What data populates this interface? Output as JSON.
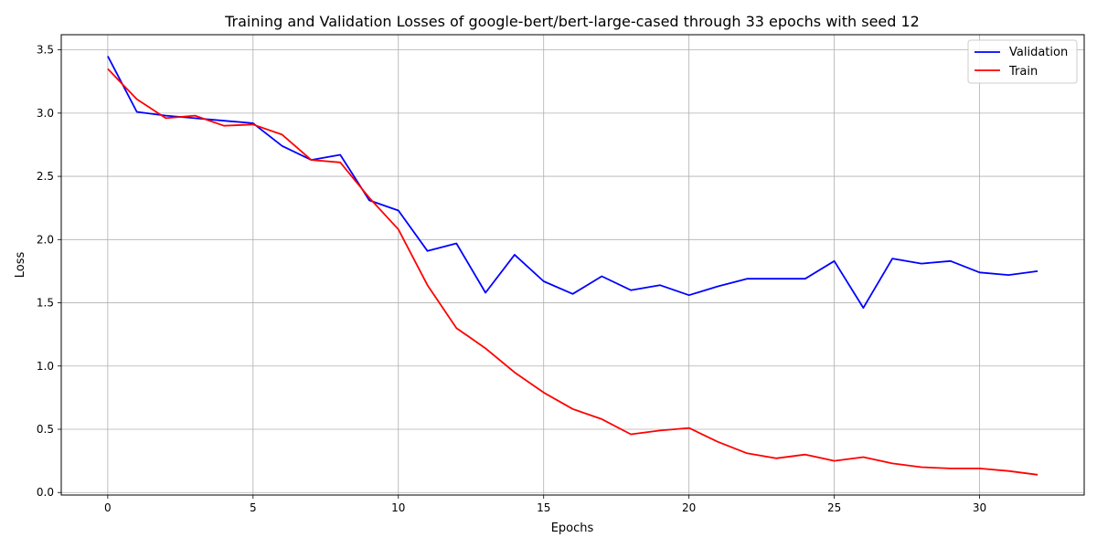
{
  "chart_data": {
    "type": "line",
    "title": "Training and Validation Losses of google-bert/bert-large-cased through 33 epochs with seed 12",
    "xlabel": "Epochs",
    "ylabel": "Loss",
    "xlim": [
      -1.6,
      33.6
    ],
    "ylim": [
      -0.02,
      3.62
    ],
    "xticks": [
      0,
      5,
      10,
      15,
      20,
      25,
      30
    ],
    "yticks": [
      0.0,
      0.5,
      1.0,
      1.5,
      2.0,
      2.5,
      3.0,
      3.5
    ],
    "ytick_labels": [
      "0.0",
      "0.5",
      "1.0",
      "1.5",
      "2.0",
      "2.5",
      "3.0",
      "3.5"
    ],
    "grid": true,
    "legend_position": "top-right",
    "x": [
      0,
      1,
      2,
      3,
      4,
      5,
      6,
      7,
      8,
      9,
      10,
      11,
      12,
      13,
      14,
      15,
      16,
      17,
      18,
      19,
      20,
      21,
      22,
      23,
      24,
      25,
      26,
      27,
      28,
      29,
      30,
      31,
      32
    ],
    "series": [
      {
        "name": "Validation",
        "color": "#0000ff",
        "values": [
          3.45,
          3.01,
          2.98,
          2.96,
          2.94,
          2.92,
          2.74,
          2.63,
          2.67,
          2.31,
          2.23,
          1.91,
          1.97,
          1.58,
          1.88,
          1.67,
          1.57,
          1.71,
          1.6,
          1.64,
          1.56,
          1.63,
          1.69,
          1.69,
          1.69,
          1.83,
          1.46,
          1.85,
          1.81,
          1.83,
          1.74,
          1.72,
          1.75
        ]
      },
      {
        "name": "Train",
        "color": "#ff0000",
        "values": [
          3.35,
          3.11,
          2.96,
          2.98,
          2.9,
          2.91,
          2.83,
          2.63,
          2.61,
          2.33,
          2.08,
          1.64,
          1.3,
          1.14,
          0.95,
          0.79,
          0.66,
          0.58,
          0.46,
          0.49,
          0.51,
          0.4,
          0.31,
          0.27,
          0.3,
          0.25,
          0.28,
          0.23,
          0.2,
          0.19,
          0.19,
          0.17,
          0.14
        ]
      }
    ]
  }
}
